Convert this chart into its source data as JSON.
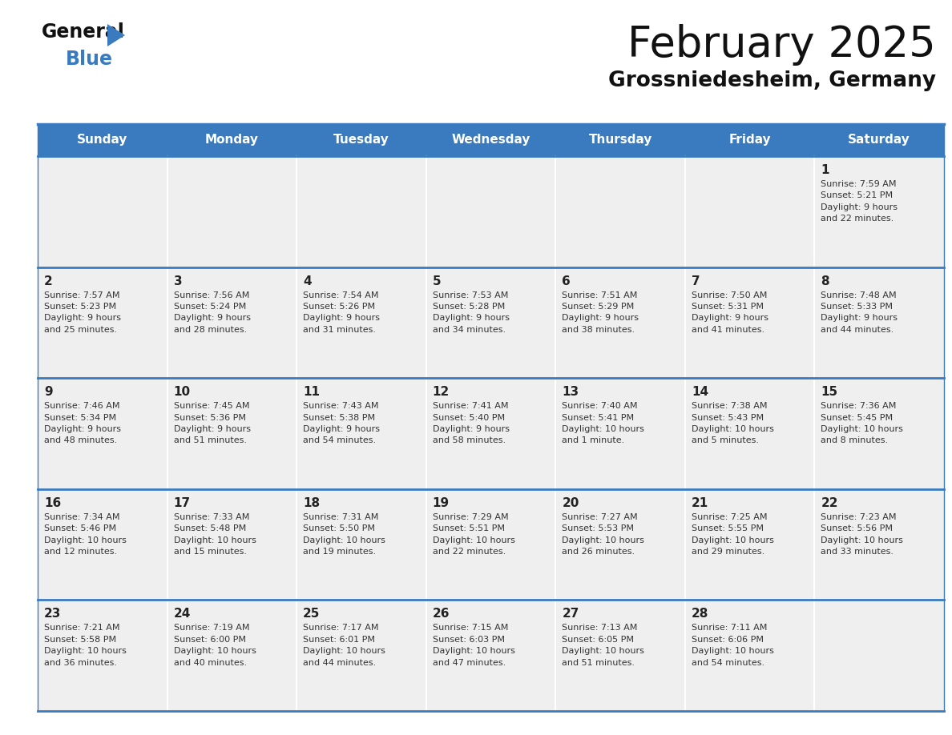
{
  "title": "February 2025",
  "subtitle": "Grossniedesheim, Germany",
  "days_of_week": [
    "Sunday",
    "Monday",
    "Tuesday",
    "Wednesday",
    "Thursday",
    "Friday",
    "Saturday"
  ],
  "header_bg": "#3A7BBF",
  "header_text": "#FFFFFF",
  "cell_bg": "#EFEFEF",
  "day_number_color": "#222222",
  "info_text_color": "#333333",
  "border_color": "#3A7BBF",
  "title_color": "#111111",
  "subtitle_color": "#111111",
  "logo_general_color": "#111111",
  "logo_blue_color": "#3A7BBF",
  "weeks": [
    [
      {
        "day": null,
        "info": null
      },
      {
        "day": null,
        "info": null
      },
      {
        "day": null,
        "info": null
      },
      {
        "day": null,
        "info": null
      },
      {
        "day": null,
        "info": null
      },
      {
        "day": null,
        "info": null
      },
      {
        "day": 1,
        "info": "Sunrise: 7:59 AM\nSunset: 5:21 PM\nDaylight: 9 hours\nand 22 minutes."
      }
    ],
    [
      {
        "day": 2,
        "info": "Sunrise: 7:57 AM\nSunset: 5:23 PM\nDaylight: 9 hours\nand 25 minutes."
      },
      {
        "day": 3,
        "info": "Sunrise: 7:56 AM\nSunset: 5:24 PM\nDaylight: 9 hours\nand 28 minutes."
      },
      {
        "day": 4,
        "info": "Sunrise: 7:54 AM\nSunset: 5:26 PM\nDaylight: 9 hours\nand 31 minutes."
      },
      {
        "day": 5,
        "info": "Sunrise: 7:53 AM\nSunset: 5:28 PM\nDaylight: 9 hours\nand 34 minutes."
      },
      {
        "day": 6,
        "info": "Sunrise: 7:51 AM\nSunset: 5:29 PM\nDaylight: 9 hours\nand 38 minutes."
      },
      {
        "day": 7,
        "info": "Sunrise: 7:50 AM\nSunset: 5:31 PM\nDaylight: 9 hours\nand 41 minutes."
      },
      {
        "day": 8,
        "info": "Sunrise: 7:48 AM\nSunset: 5:33 PM\nDaylight: 9 hours\nand 44 minutes."
      }
    ],
    [
      {
        "day": 9,
        "info": "Sunrise: 7:46 AM\nSunset: 5:34 PM\nDaylight: 9 hours\nand 48 minutes."
      },
      {
        "day": 10,
        "info": "Sunrise: 7:45 AM\nSunset: 5:36 PM\nDaylight: 9 hours\nand 51 minutes."
      },
      {
        "day": 11,
        "info": "Sunrise: 7:43 AM\nSunset: 5:38 PM\nDaylight: 9 hours\nand 54 minutes."
      },
      {
        "day": 12,
        "info": "Sunrise: 7:41 AM\nSunset: 5:40 PM\nDaylight: 9 hours\nand 58 minutes."
      },
      {
        "day": 13,
        "info": "Sunrise: 7:40 AM\nSunset: 5:41 PM\nDaylight: 10 hours\nand 1 minute."
      },
      {
        "day": 14,
        "info": "Sunrise: 7:38 AM\nSunset: 5:43 PM\nDaylight: 10 hours\nand 5 minutes."
      },
      {
        "day": 15,
        "info": "Sunrise: 7:36 AM\nSunset: 5:45 PM\nDaylight: 10 hours\nand 8 minutes."
      }
    ],
    [
      {
        "day": 16,
        "info": "Sunrise: 7:34 AM\nSunset: 5:46 PM\nDaylight: 10 hours\nand 12 minutes."
      },
      {
        "day": 17,
        "info": "Sunrise: 7:33 AM\nSunset: 5:48 PM\nDaylight: 10 hours\nand 15 minutes."
      },
      {
        "day": 18,
        "info": "Sunrise: 7:31 AM\nSunset: 5:50 PM\nDaylight: 10 hours\nand 19 minutes."
      },
      {
        "day": 19,
        "info": "Sunrise: 7:29 AM\nSunset: 5:51 PM\nDaylight: 10 hours\nand 22 minutes."
      },
      {
        "day": 20,
        "info": "Sunrise: 7:27 AM\nSunset: 5:53 PM\nDaylight: 10 hours\nand 26 minutes."
      },
      {
        "day": 21,
        "info": "Sunrise: 7:25 AM\nSunset: 5:55 PM\nDaylight: 10 hours\nand 29 minutes."
      },
      {
        "day": 22,
        "info": "Sunrise: 7:23 AM\nSunset: 5:56 PM\nDaylight: 10 hours\nand 33 minutes."
      }
    ],
    [
      {
        "day": 23,
        "info": "Sunrise: 7:21 AM\nSunset: 5:58 PM\nDaylight: 10 hours\nand 36 minutes."
      },
      {
        "day": 24,
        "info": "Sunrise: 7:19 AM\nSunset: 6:00 PM\nDaylight: 10 hours\nand 40 minutes."
      },
      {
        "day": 25,
        "info": "Sunrise: 7:17 AM\nSunset: 6:01 PM\nDaylight: 10 hours\nand 44 minutes."
      },
      {
        "day": 26,
        "info": "Sunrise: 7:15 AM\nSunset: 6:03 PM\nDaylight: 10 hours\nand 47 minutes."
      },
      {
        "day": 27,
        "info": "Sunrise: 7:13 AM\nSunset: 6:05 PM\nDaylight: 10 hours\nand 51 minutes."
      },
      {
        "day": 28,
        "info": "Sunrise: 7:11 AM\nSunset: 6:06 PM\nDaylight: 10 hours\nand 54 minutes."
      },
      {
        "day": null,
        "info": null
      }
    ]
  ],
  "fig_width": 11.88,
  "fig_height": 9.18,
  "dpi": 100
}
